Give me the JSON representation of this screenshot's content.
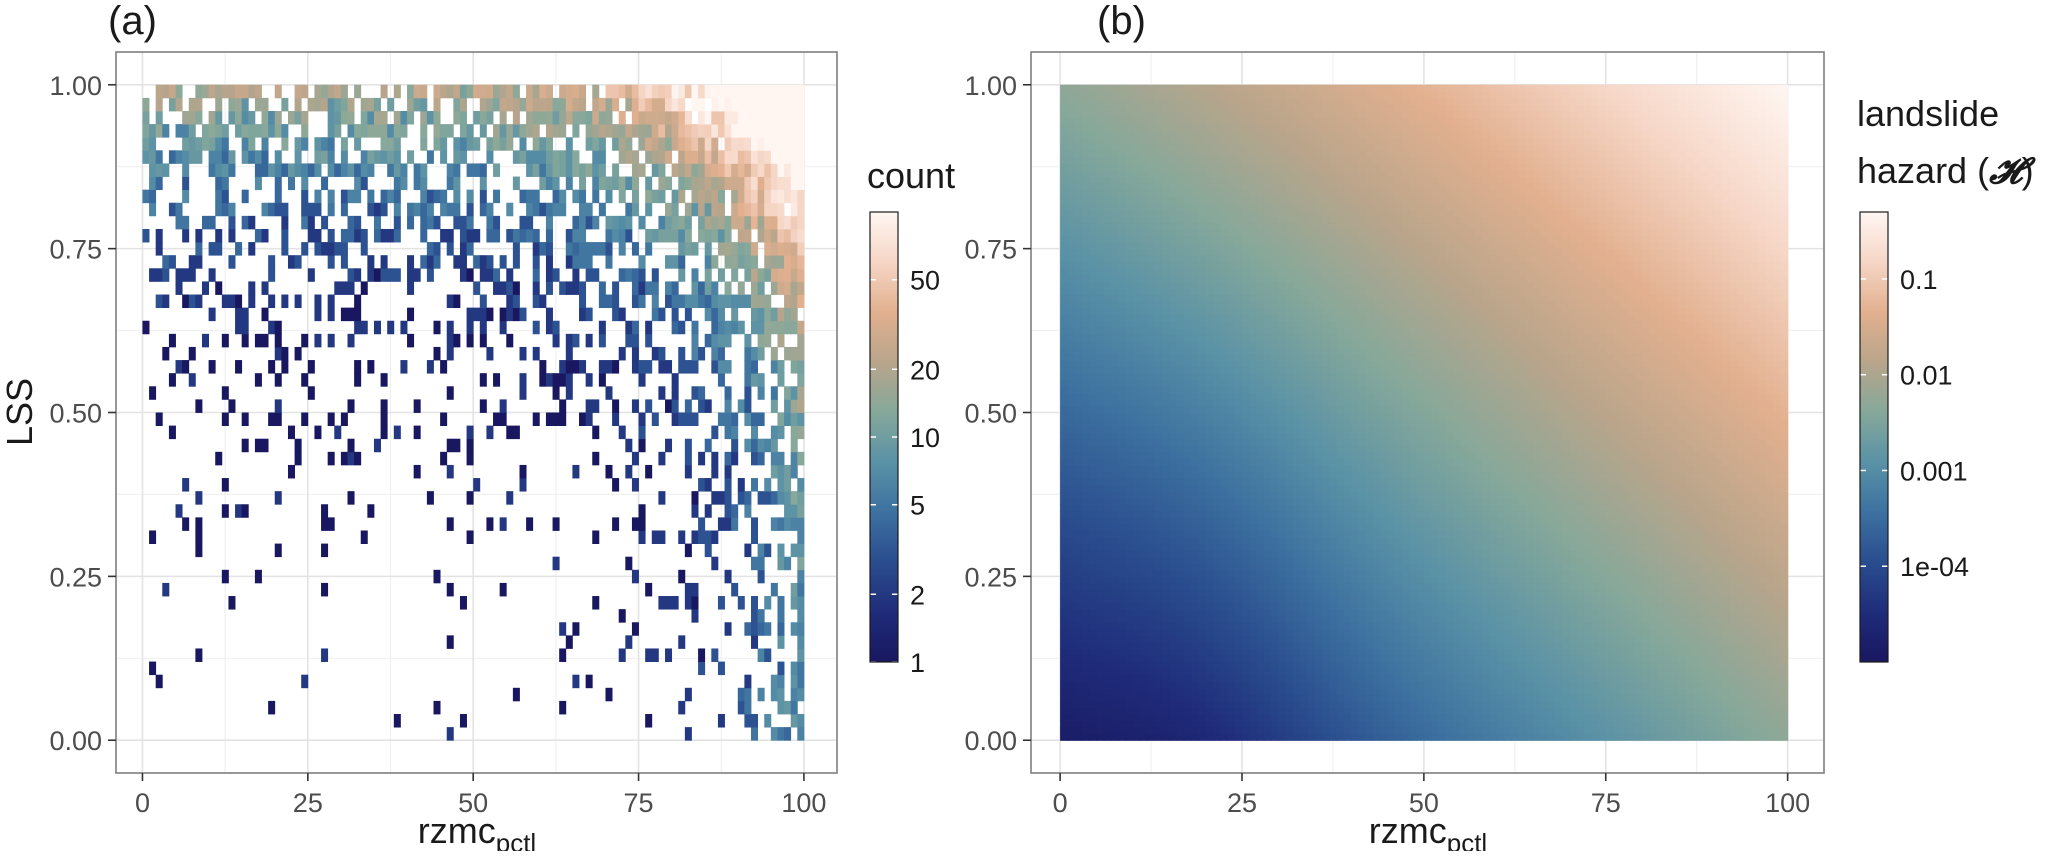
{
  "chart_data": [
    {
      "type": "heatmap",
      "panel_label": "(a)",
      "title": "",
      "xlabel": "rzmc",
      "xlabel_sub": "pctl",
      "ylabel": "LSS",
      "xlim": [
        -4,
        105
      ],
      "ylim": [
        -0.05,
        1.05
      ],
      "x_ticks": [
        0,
        25,
        50,
        75,
        100
      ],
      "x_tick_labels": [
        "0",
        "25",
        "50",
        "75",
        "100"
      ],
      "y_ticks": [
        0,
        0.25,
        0.5,
        0.75,
        1.0
      ],
      "y_tick_labels": [
        "0.00",
        "0.25",
        "0.50",
        "0.75",
        "1.00"
      ],
      "grid": true,
      "bins": {
        "nx": 100,
        "ny": 50,
        "x_range": [
          0,
          100
        ],
        "y_range": [
          0,
          1
        ]
      },
      "description_of_values": "2-D histogram of counts per bin; sparse (count 1) at low rzmc and low LSS, dense at high LSS and high rzmc, maximum counts (~100) near rzmc 95-100, LSS 0.95-1.0",
      "legend": {
        "title": "count",
        "scale": "log",
        "range": [
          1,
          100
        ],
        "ticks": [
          1,
          2,
          5,
          10,
          20,
          50
        ],
        "tick_labels": [
          "1",
          "2",
          "5",
          "10",
          "20",
          "50"
        ],
        "placement": "right"
      }
    },
    {
      "type": "heatmap",
      "panel_label": "(b)",
      "title": "",
      "xlabel": "rzmc",
      "xlabel_sub": "pctl",
      "ylabel": "",
      "xlim": [
        -4,
        105
      ],
      "ylim": [
        -0.05,
        1.05
      ],
      "x_ticks": [
        0,
        25,
        50,
        75,
        100
      ],
      "x_tick_labels": [
        "0",
        "25",
        "50",
        "75",
        "100"
      ],
      "y_ticks": [
        0,
        0.25,
        0.5,
        0.75,
        1.0
      ],
      "y_tick_labels": [
        "0.00",
        "0.25",
        "0.50",
        "0.75",
        "1.00"
      ],
      "grid": true,
      "surface": {
        "x_range": [
          0,
          100
        ],
        "y_range": [
          0,
          1
        ],
        "description_of_values": "smooth landslide hazard surface; ~1e-05 at rzmc 10-25, LSS 0, rising with both variables to ~0.5 at rzmc 100, LSS 1.0",
        "corner_values": {
          "x0_y0": 2e-05,
          "x100_y0": 0.005,
          "x0_y1": 0.005,
          "x100_y1": 0.5
        }
      },
      "legend": {
        "title_line1": "landslide",
        "title_line2": "hazard (",
        "title_symbol": "𝓗",
        "title_close": ")",
        "scale": "log",
        "range": [
          1e-05,
          0.5
        ],
        "ticks": [
          0.0001,
          0.001,
          0.01,
          0.1
        ],
        "tick_labels": [
          "1e-04",
          "0.001",
          "0.01",
          "0.1"
        ],
        "placement": "right"
      }
    }
  ],
  "colors": {
    "palette": [
      "#191760",
      "#1F2C7A",
      "#2A4D8E",
      "#3D71A0",
      "#5A92A6",
      "#86A89A",
      "#B9A58B",
      "#E2B08F",
      "#F6D6C6",
      "#FFF6F2"
    ],
    "panel_border": "#7f7f7f",
    "grid_major": "#e3e3e3",
    "grid_minor": "#f0f0f0",
    "tick_text": "#4d4d4d",
    "axis_title": "#1a1a1a"
  }
}
